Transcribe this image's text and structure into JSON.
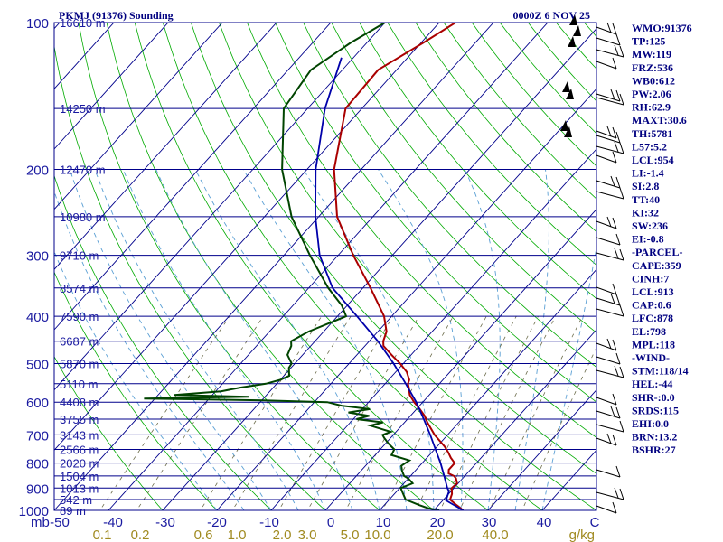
{
  "header": {
    "station": "PKMJ (91376) Sounding",
    "datetime": "0000Z  6 NOV 25"
  },
  "chart_data": {
    "type": "line",
    "title": "PKMJ (91376) Sounding",
    "pressure_axis": {
      "label_unit": "mb",
      "levels": [
        100,
        200,
        300,
        400,
        500,
        600,
        700,
        800,
        900,
        1000
      ]
    },
    "temperature_axis": {
      "ticks": [
        -50,
        -40,
        -30,
        -20,
        -10,
        0,
        10,
        20,
        30,
        40,
        "C"
      ],
      "tick_labels": [
        "-50",
        "-40",
        "-30",
        "-20",
        "-10",
        "0",
        "10",
        "20",
        "30",
        "40",
        "C"
      ]
    },
    "mixing_ratio_labels": [
      "0.1",
      "0.2",
      "0.6",
      "1.0",
      "2.0",
      "3.0",
      "5.0",
      "10.0",
      "20.0",
      "40.0"
    ],
    "mixing_ratio_unit": "g/kg",
    "height_levels": [
      {
        "p": 100,
        "label": "16610 m"
      },
      {
        "p": 150,
        "label": "14250 m"
      },
      {
        "p": 200,
        "label": "12470 m"
      },
      {
        "p": 250,
        "label": "10980 m"
      },
      {
        "p": 300,
        "label": "9710 m"
      },
      {
        "p": 350,
        "label": "8574 m"
      },
      {
        "p": 400,
        "label": "7590 m"
      },
      {
        "p": 450,
        "label": "6687 m"
      },
      {
        "p": 500,
        "label": "5870 m"
      },
      {
        "p": 550,
        "label": "5110 m"
      },
      {
        "p": 600,
        "label": "4408 m"
      },
      {
        "p": 650,
        "label": "3755 m"
      },
      {
        "p": 700,
        "label": "3143 m"
      },
      {
        "p": 750,
        "label": "2566 m"
      },
      {
        "p": 800,
        "label": "2020 m"
      },
      {
        "p": 850,
        "label": "1504 m"
      },
      {
        "p": 900,
        "label": "1013 m"
      },
      {
        "p": 950,
        "label": "542 m"
      },
      {
        "p": 1000,
        "label": "89 m"
      }
    ],
    "series": [
      {
        "key": "temperature",
        "color": "#aa0000",
        "points": [
          [
            1000,
            25.4
          ],
          [
            990,
            24.6
          ],
          [
            975,
            23.3
          ],
          [
            950,
            21.2
          ],
          [
            925,
            20.6
          ],
          [
            900,
            19.6
          ],
          [
            880,
            19.8
          ],
          [
            860,
            18.8
          ],
          [
            850,
            18.0
          ],
          [
            840,
            16.6
          ],
          [
            825,
            16.0
          ],
          [
            800,
            16.0
          ],
          [
            780,
            14.4
          ],
          [
            760,
            13.0
          ],
          [
            740,
            11.4
          ],
          [
            700,
            7.6
          ],
          [
            660,
            4.2
          ],
          [
            640,
            2.6
          ],
          [
            620,
            0.6
          ],
          [
            600,
            -1.6
          ],
          [
            580,
            -3.6
          ],
          [
            560,
            -5.0
          ],
          [
            550,
            -5.8
          ],
          [
            540,
            -6.2
          ],
          [
            520,
            -8.0
          ],
          [
            500,
            -10.6
          ],
          [
            480,
            -13.6
          ],
          [
            460,
            -16.6
          ],
          [
            450,
            -17.4
          ],
          [
            430,
            -18.4
          ],
          [
            400,
            -21.4
          ],
          [
            350,
            -28.6
          ],
          [
            300,
            -37.2
          ],
          [
            250,
            -46.6
          ],
          [
            200,
            -55.0
          ],
          [
            150,
            -63.0
          ],
          [
            125,
            -63.4
          ],
          [
            110,
            -59.6
          ],
          [
            100,
            -57.0
          ]
        ]
      },
      {
        "key": "dewpoint",
        "color": "#004400",
        "points": [
          [
            1000,
            21.0
          ],
          [
            990,
            18.6
          ],
          [
            975,
            16.4
          ],
          [
            950,
            13.0
          ],
          [
            925,
            11.6
          ],
          [
            900,
            10.2
          ],
          [
            880,
            11.6
          ],
          [
            860,
            10.0
          ],
          [
            850,
            8.8
          ],
          [
            830,
            7.6
          ],
          [
            810,
            6.6
          ],
          [
            790,
            7.2
          ],
          [
            770,
            3.0
          ],
          [
            750,
            2.6
          ],
          [
            730,
            0.6
          ],
          [
            710,
            -1.2
          ],
          [
            700,
            -2.0
          ],
          [
            690,
            -1.0
          ],
          [
            680,
            -3.4
          ],
          [
            670,
            -5.8
          ],
          [
            660,
            -4.0
          ],
          [
            650,
            -9.4
          ],
          [
            640,
            -7.6
          ],
          [
            630,
            -12.0
          ],
          [
            620,
            -8.6
          ],
          [
            610,
            -14.4
          ],
          [
            600,
            -17.6
          ],
          [
            595,
            -29.6
          ],
          [
            590,
            -52.0
          ],
          [
            585,
            -33.0
          ],
          [
            580,
            -47.0
          ],
          [
            570,
            -39.0
          ],
          [
            560,
            -36.0
          ],
          [
            550,
            -32.0
          ],
          [
            540,
            -30.0
          ],
          [
            530,
            -29.0
          ],
          [
            510,
            -30.4
          ],
          [
            500,
            -30.6
          ],
          [
            480,
            -32.8
          ],
          [
            460,
            -33.6
          ],
          [
            450,
            -34.4
          ],
          [
            430,
            -32.8
          ],
          [
            400,
            -28.4
          ],
          [
            380,
            -31.0
          ],
          [
            350,
            -36.4
          ],
          [
            300,
            -45.2
          ],
          [
            250,
            -55.0
          ],
          [
            200,
            -64.6
          ],
          [
            150,
            -74.4
          ],
          [
            125,
            -75.8
          ],
          [
            110,
            -73.0
          ],
          [
            100,
            -70.0
          ]
        ]
      },
      {
        "key": "parcel",
        "color": "#0000aa",
        "points": [
          [
            1000,
            25.4
          ],
          [
            954,
            20.6
          ],
          [
            913,
            19.6
          ],
          [
            900,
            18.8
          ],
          [
            850,
            16.2
          ],
          [
            800,
            13.4
          ],
          [
            750,
            10.2
          ],
          [
            700,
            6.8
          ],
          [
            650,
            3.0
          ],
          [
            600,
            -1.2
          ],
          [
            550,
            -6.2
          ],
          [
            500,
            -11.8
          ],
          [
            450,
            -18.4
          ],
          [
            400,
            -26.4
          ],
          [
            350,
            -35.6
          ],
          [
            300,
            -43.4
          ],
          [
            250,
            -50.6
          ],
          [
            200,
            -58.4
          ],
          [
            150,
            -66.8
          ],
          [
            118,
            -72.2
          ]
        ]
      }
    ],
    "wind_barbs_present": true,
    "grid": true
  },
  "indices": [
    "WMO:91376",
    "TP:125",
    "MW:119",
    "FRZ:536",
    "WB0:612",
    "PW:2.06",
    "RH:62.9",
    "MAXT:30.6",
    "TH:5781",
    "L57:5.2",
    "LCL:954",
    "LI:-1.4",
    "SI:2.8",
    "TT:40",
    "KI:32",
    "SW:236",
    "EI:-0.8",
    "-PARCEL-",
    "CAPE:359",
    "CINH:7",
    "LCL:913",
    "CAP:0.6",
    "LFC:878",
    "EL:798",
    "MPL:118",
    "-WIND-",
    "STM:118/14",
    "HEL:-44",
    "SHR-:0.0",
    "SRDS:115",
    "EHI:0.0",
    "BRN:13.2",
    "BSHR:27"
  ],
  "colors": {
    "isobar": "#00008b",
    "isotherm": "#00008b",
    "dry_adiabat": "#00aa00",
    "moist_adiabat": "#5a9fd4",
    "mixing_ratio": "#6b6b4a",
    "temperature": "#aa0000",
    "dewpoint": "#004400",
    "parcel": "#0000aa"
  }
}
